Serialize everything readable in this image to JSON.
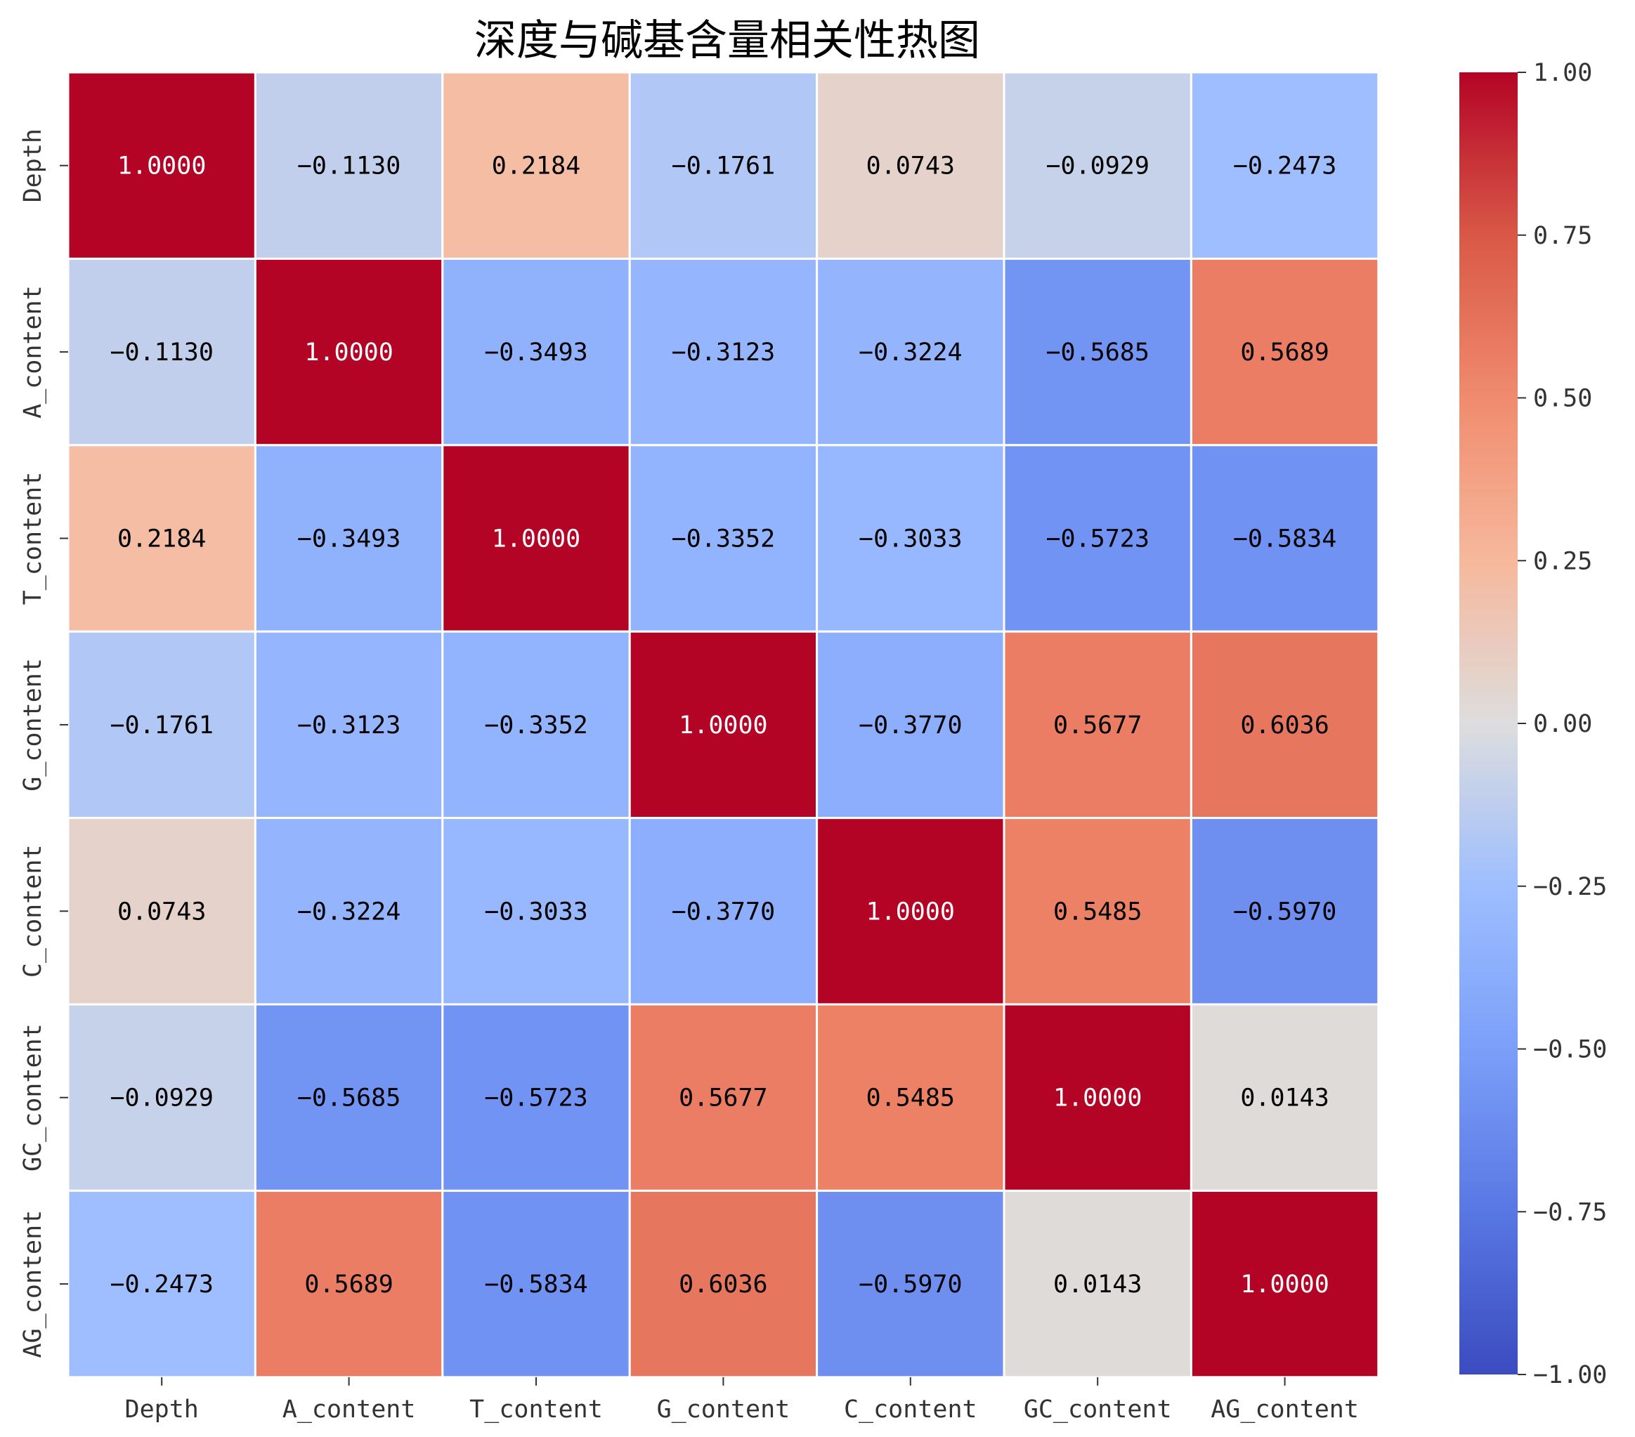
{
  "chart_data": {
    "type": "heatmap",
    "title": "深度与碱基含量相关性热图",
    "labels": [
      "Depth",
      "A_content",
      "T_content",
      "G_content",
      "C_content",
      "GC_content",
      "AG_content"
    ],
    "values": [
      [
        1.0,
        -0.113,
        0.2184,
        -0.1761,
        0.0743,
        -0.0929,
        -0.2473
      ],
      [
        -0.113,
        1.0,
        -0.3493,
        -0.3123,
        -0.3224,
        -0.5685,
        0.5689
      ],
      [
        0.2184,
        -0.3493,
        1.0,
        -0.3352,
        -0.3033,
        -0.5723,
        -0.5834
      ],
      [
        -0.1761,
        -0.3123,
        -0.3352,
        1.0,
        -0.377,
        0.5677,
        0.6036
      ],
      [
        0.0743,
        -0.3224,
        -0.3033,
        -0.377,
        1.0,
        0.5485,
        -0.597
      ],
      [
        -0.0929,
        -0.5685,
        -0.5723,
        0.5677,
        0.5485,
        1.0,
        0.0143
      ],
      [
        -0.2473,
        0.5689,
        -0.5834,
        0.6036,
        -0.597,
        0.0143,
        1.0
      ]
    ],
    "colormap": "coolwarm",
    "vmin": -1.0,
    "vmax": 1.0,
    "colorbar_ticks": [
      "1.00",
      "0.75",
      "0.50",
      "0.25",
      "0.00",
      "−0.25",
      "−0.50",
      "−0.75",
      "−1.00"
    ],
    "colorbar_tick_values": [
      1.0,
      0.75,
      0.5,
      0.25,
      0.0,
      -0.25,
      -0.5,
      -0.75,
      -1.0
    ]
  }
}
